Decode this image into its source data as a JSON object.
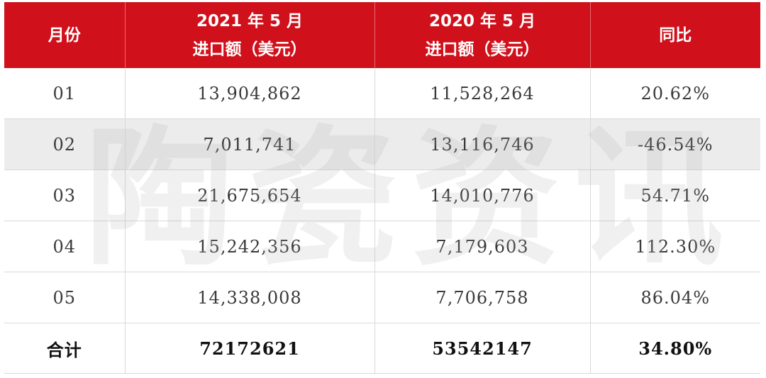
{
  "watermark": [
    "陶",
    "瓷",
    "资",
    "讯"
  ],
  "header": {
    "col1": "月份",
    "col2_line1": "2021 年 5 月",
    "col2_line2": "进口额（美元）",
    "col3_line1": "2020 年 5 月",
    "col3_line2": "进口额（美元）",
    "col4": "同比"
  },
  "rows": [
    {
      "month": "01",
      "y2021": "13,904,862",
      "y2020": "11,528,264",
      "yoy": "20.62%"
    },
    {
      "month": "02",
      "y2021": "7,011,741",
      "y2020": "13,116,746",
      "yoy": "-46.54%"
    },
    {
      "month": "03",
      "y2021": "21,675,654",
      "y2020": "14,010,776",
      "yoy": "54.71%"
    },
    {
      "month": "04",
      "y2021": "15,242,356",
      "y2020": "7,179,603",
      "yoy": "112.30%"
    },
    {
      "month": "05",
      "y2021": "14,338,008",
      "y2020": "7,706,758",
      "yoy": "86.04%"
    }
  ],
  "total": {
    "label": "合计",
    "y2021": "72172621",
    "y2020": "53542147",
    "yoy": "34.80%"
  },
  "colors": {
    "header_bg": "#d0101b",
    "header_text": "#ffffff",
    "shaded_row": "#ececec"
  }
}
